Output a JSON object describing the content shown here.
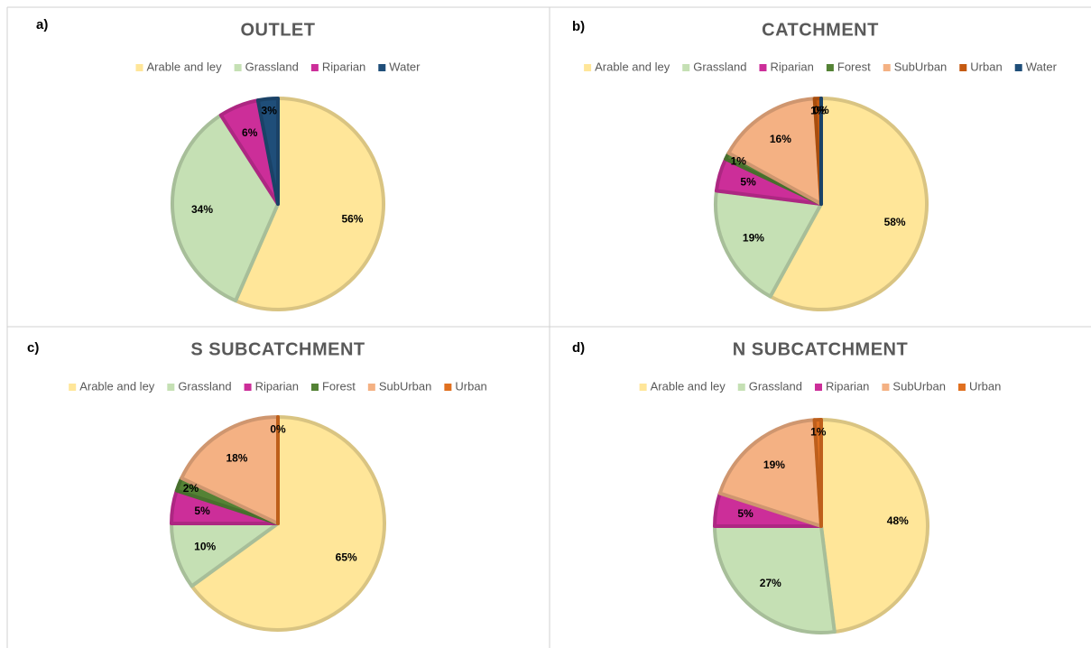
{
  "chart_data": [
    {
      "type": "pie",
      "label": "a)",
      "title": "OUTLET",
      "categories": [
        "Arable and ley",
        "Grassland",
        "Riparian",
        "Water"
      ],
      "values": [
        56,
        34,
        6,
        3
      ],
      "value_labels": [
        "56%",
        "34%",
        "6%",
        "3%"
      ],
      "colors": [
        "#ffe699",
        "#c5e0b4",
        "#cc2e99",
        "#1f4e79"
      ]
    },
    {
      "type": "pie",
      "label": "b)",
      "title": "CATCHMENT",
      "categories": [
        "Arable and ley",
        "Grassland",
        "Riparian",
        "Forest",
        "SubUrban",
        "Urban",
        "Water"
      ],
      "values": [
        58,
        19,
        5,
        1,
        16,
        1,
        0
      ],
      "value_labels": [
        "58%",
        "19%",
        "5%",
        "1%",
        "16%",
        "1%",
        "0%"
      ],
      "colors": [
        "#ffe699",
        "#c5e0b4",
        "#cc2e99",
        "#548235",
        "#f4b183",
        "#c55a11",
        "#1f4e79"
      ]
    },
    {
      "type": "pie",
      "label": "c)",
      "title": "S SUBCATCHMENT",
      "categories": [
        "Arable and ley",
        "Grassland",
        "Riparian",
        "Forest",
        "SubUrban",
        "Urban"
      ],
      "values": [
        65,
        10,
        5,
        2,
        18,
        0
      ],
      "value_labels": [
        "65%",
        "10%",
        "5%",
        "2%",
        "18%",
        "0%"
      ],
      "colors": [
        "#ffe699",
        "#c5e0b4",
        "#cc2e99",
        "#548235",
        "#f4b183",
        "#e07020"
      ]
    },
    {
      "type": "pie",
      "label": "d)",
      "title": "N SUBCATCHMENT",
      "categories": [
        "Arable and ley",
        "Grassland",
        "Riparian",
        "SubUrban",
        "Urban"
      ],
      "values": [
        48,
        27,
        5,
        19,
        1
      ],
      "value_labels": [
        "48%",
        "27%",
        "5%",
        "19%",
        "1%"
      ],
      "colors": [
        "#ffe699",
        "#c5e0b4",
        "#cc2e99",
        "#f4b183",
        "#e07020"
      ]
    }
  ]
}
